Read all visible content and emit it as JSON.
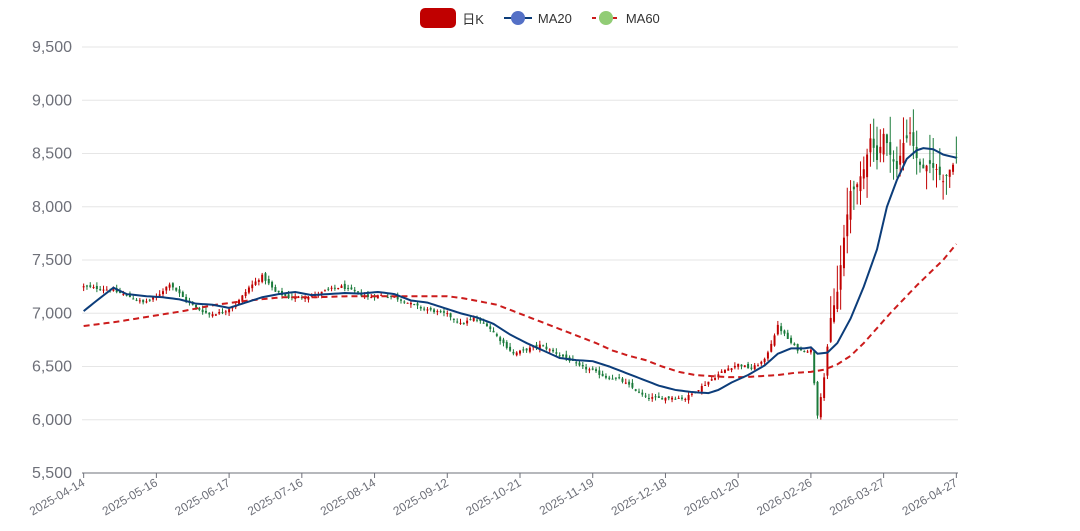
{
  "chart_data": {
    "type": "candlestick",
    "legend": [
      {
        "label": "日K",
        "kind": "candle",
        "color": "#c00000"
      },
      {
        "label": "MA20",
        "kind": "line",
        "color": "#0c3d7a",
        "dot": "#5470c6"
      },
      {
        "label": "MA60",
        "kind": "dashed",
        "color": "#cc1c1c",
        "dot": "#91cc75"
      }
    ],
    "colors": {
      "up": "#c00000",
      "down": "#1a7a3a",
      "ma20": "#0c3d7a",
      "ma60": "#cc1c1c"
    },
    "y_axis": {
      "min": 5500,
      "max": 9500,
      "ticks": [
        5500,
        6000,
        6500,
        7000,
        7500,
        8000,
        8500,
        9000,
        9500
      ],
      "tick_labels": [
        "5,500",
        "6,000",
        "6,500",
        "7,000",
        "7,500",
        "8,000",
        "8,500",
        "9,000",
        "9,500"
      ]
    },
    "x_axis": {
      "tick_labels": [
        "2025-04-14",
        "2025-05-16",
        "2025-06-17",
        "2025-07-16",
        "2025-08-14",
        "2025-09-12",
        "2025-10-21",
        "2025-11-19",
        "2025-12-18",
        "2026-01-20",
        "2026-02-26",
        "2026-03-27",
        "2026-04-27"
      ],
      "tick_index": [
        0,
        22,
        44,
        66,
        88,
        110,
        132,
        154,
        176,
        198,
        220,
        242,
        264
      ]
    },
    "days": 265,
    "close_path": [
      [
        0,
        7250
      ],
      [
        8,
        7220
      ],
      [
        12,
        7180
      ],
      [
        18,
        7100
      ],
      [
        22,
        7150
      ],
      [
        26,
        7280
      ],
      [
        30,
        7150
      ],
      [
        34,
        7050
      ],
      [
        38,
        6990
      ],
      [
        42,
        7010
      ],
      [
        46,
        7080
      ],
      [
        50,
        7240
      ],
      [
        54,
        7350
      ],
      [
        58,
        7200
      ],
      [
        62,
        7150
      ],
      [
        66,
        7150
      ],
      [
        70,
        7170
      ],
      [
        74,
        7220
      ],
      [
        78,
        7250
      ],
      [
        82,
        7200
      ],
      [
        86,
        7150
      ],
      [
        90,
        7170
      ],
      [
        94,
        7150
      ],
      [
        98,
        7100
      ],
      [
        102,
        7050
      ],
      [
        106,
        7020
      ],
      [
        110,
        6990
      ],
      [
        114,
        6900
      ],
      [
        118,
        6950
      ],
      [
        122,
        6890
      ],
      [
        126,
        6750
      ],
      [
        130,
        6620
      ],
      [
        134,
        6660
      ],
      [
        138,
        6700
      ],
      [
        142,
        6640
      ],
      [
        146,
        6580
      ],
      [
        150,
        6500
      ],
      [
        154,
        6460
      ],
      [
        158,
        6400
      ],
      [
        162,
        6380
      ],
      [
        166,
        6300
      ],
      [
        170,
        6210
      ],
      [
        174,
        6200
      ],
      [
        178,
        6210
      ],
      [
        182,
        6200
      ],
      [
        186,
        6290
      ],
      [
        190,
        6380
      ],
      [
        194,
        6470
      ],
      [
        198,
        6520
      ],
      [
        202,
        6480
      ],
      [
        206,
        6560
      ],
      [
        210,
        6880
      ],
      [
        214,
        6720
      ],
      [
        216,
        6660
      ],
      [
        218,
        6650
      ],
      [
        220,
        6650
      ],
      [
        222,
        6050
      ],
      [
        224,
        6400
      ],
      [
        226,
        6950
      ],
      [
        228,
        7200
      ],
      [
        230,
        7700
      ],
      [
        232,
        8150
      ],
      [
        234,
        8200
      ],
      [
        236,
        8350
      ],
      [
        238,
        8650
      ],
      [
        240,
        8450
      ],
      [
        242,
        8680
      ],
      [
        244,
        8500
      ],
      [
        246,
        8350
      ],
      [
        248,
        8600
      ],
      [
        250,
        8700
      ],
      [
        252,
        8450
      ],
      [
        254,
        8350
      ],
      [
        256,
        8400
      ],
      [
        258,
        8350
      ],
      [
        260,
        8250
      ],
      [
        262,
        8350
      ],
      [
        264,
        8460
      ]
    ],
    "ma20_path": [
      [
        0,
        7020
      ],
      [
        4,
        7120
      ],
      [
        9,
        7240
      ],
      [
        13,
        7180
      ],
      [
        19,
        7160
      ],
      [
        24,
        7150
      ],
      [
        29,
        7130
      ],
      [
        34,
        7090
      ],
      [
        39,
        7080
      ],
      [
        44,
        7050
      ],
      [
        49,
        7100
      ],
      [
        54,
        7150
      ],
      [
        59,
        7180
      ],
      [
        64,
        7200
      ],
      [
        69,
        7170
      ],
      [
        74,
        7180
      ],
      [
        79,
        7190
      ],
      [
        84,
        7185
      ],
      [
        89,
        7200
      ],
      [
        94,
        7180
      ],
      [
        99,
        7120
      ],
      [
        104,
        7100
      ],
      [
        109,
        7050
      ],
      [
        114,
        7000
      ],
      [
        119,
        6960
      ],
      [
        124,
        6900
      ],
      [
        129,
        6800
      ],
      [
        134,
        6720
      ],
      [
        139,
        6650
      ],
      [
        144,
        6580
      ],
      [
        149,
        6560
      ],
      [
        154,
        6550
      ],
      [
        159,
        6500
      ],
      [
        164,
        6440
      ],
      [
        169,
        6380
      ],
      [
        174,
        6320
      ],
      [
        179,
        6280
      ],
      [
        184,
        6260
      ],
      [
        189,
        6250
      ],
      [
        192,
        6280
      ],
      [
        196,
        6350
      ],
      [
        201,
        6420
      ],
      [
        206,
        6510
      ],
      [
        210,
        6620
      ],
      [
        214,
        6670
      ],
      [
        218,
        6670
      ],
      [
        220,
        6680
      ],
      [
        222,
        6620
      ],
      [
        225,
        6630
      ],
      [
        228,
        6720
      ],
      [
        232,
        6950
      ],
      [
        236,
        7250
      ],
      [
        240,
        7600
      ],
      [
        243,
        8000
      ],
      [
        246,
        8250
      ],
      [
        249,
        8450
      ],
      [
        252,
        8530
      ],
      [
        254,
        8550
      ],
      [
        257,
        8540
      ],
      [
        260,
        8490
      ],
      [
        264,
        8460
      ]
    ],
    "ma60_path": [
      [
        0,
        6880
      ],
      [
        10,
        6920
      ],
      [
        20,
        6970
      ],
      [
        30,
        7020
      ],
      [
        40,
        7080
      ],
      [
        50,
        7120
      ],
      [
        60,
        7150
      ],
      [
        70,
        7150
      ],
      [
        80,
        7160
      ],
      [
        90,
        7160
      ],
      [
        100,
        7160
      ],
      [
        110,
        7160
      ],
      [
        115,
        7140
      ],
      [
        120,
        7110
      ],
      [
        125,
        7080
      ],
      [
        130,
        7020
      ],
      [
        135,
        6960
      ],
      [
        140,
        6900
      ],
      [
        145,
        6840
      ],
      [
        150,
        6780
      ],
      [
        155,
        6720
      ],
      [
        160,
        6650
      ],
      [
        165,
        6600
      ],
      [
        170,
        6560
      ],
      [
        175,
        6500
      ],
      [
        180,
        6450
      ],
      [
        185,
        6420
      ],
      [
        190,
        6410
      ],
      [
        195,
        6400
      ],
      [
        200,
        6400
      ],
      [
        205,
        6410
      ],
      [
        210,
        6420
      ],
      [
        215,
        6440
      ],
      [
        220,
        6450
      ],
      [
        224,
        6470
      ],
      [
        228,
        6520
      ],
      [
        232,
        6600
      ],
      [
        236,
        6720
      ],
      [
        240,
        6860
      ],
      [
        244,
        7000
      ],
      [
        248,
        7130
      ],
      [
        252,
        7260
      ],
      [
        256,
        7380
      ],
      [
        260,
        7500
      ],
      [
        264,
        7650
      ]
    ]
  }
}
